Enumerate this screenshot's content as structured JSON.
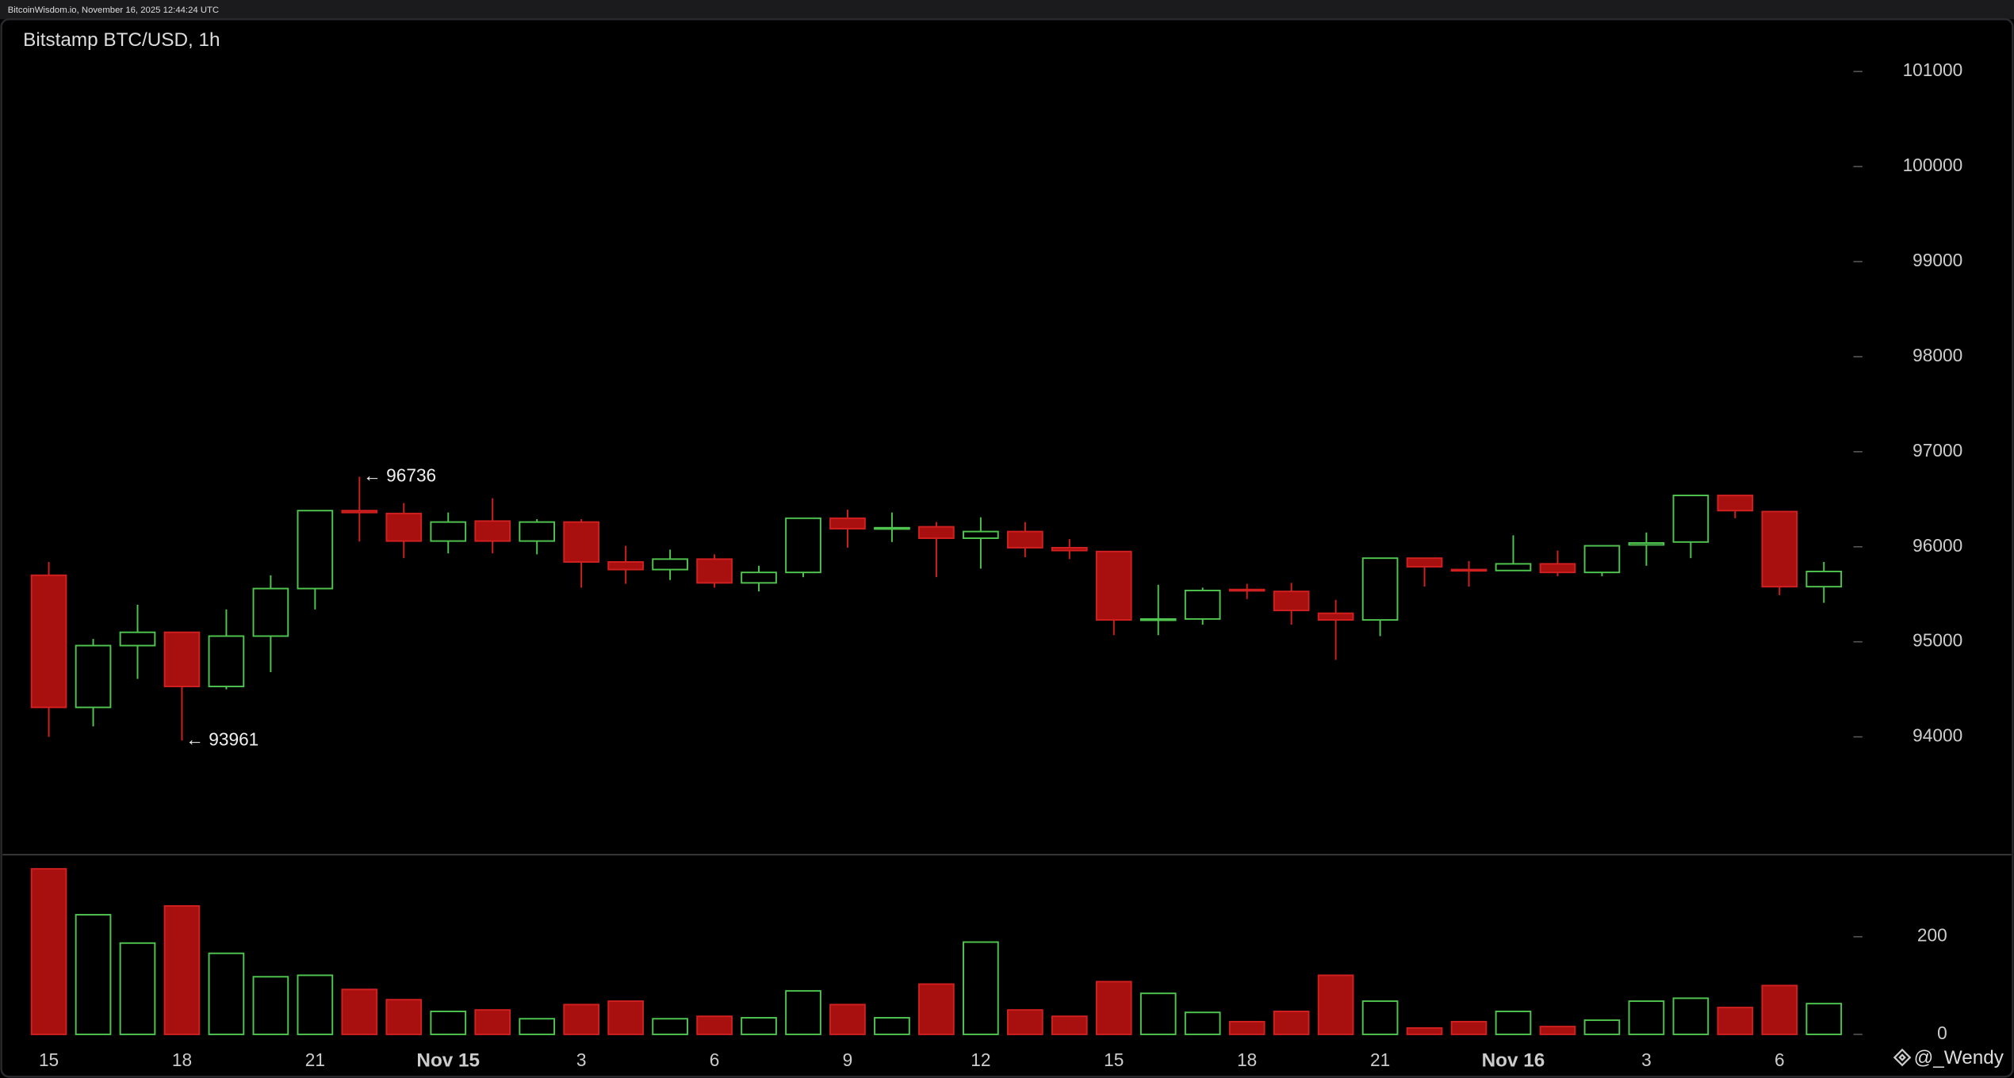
{
  "chart_data": {
    "type": "candlestick",
    "header": "BitcoinWisdom.io, November 16, 2025 12:44:24 UTC",
    "title": "Bitstamp BTC/USD, 1h",
    "categories": [
      "15",
      null,
      null,
      "18",
      null,
      null,
      "21",
      null,
      null,
      "Nov 15",
      null,
      null,
      "3",
      null,
      null,
      "6",
      null,
      null,
      "9",
      null,
      null,
      "12",
      null,
      null,
      "15",
      null,
      null,
      "18",
      null,
      null,
      "21",
      null,
      null,
      "Nov 16",
      null,
      null,
      "3",
      null,
      null,
      "6",
      null
    ],
    "open": [
      95700,
      94310,
      94960,
      95100,
      94530,
      95060,
      95560,
      96380,
      96350,
      96060,
      96270,
      96060,
      96260,
      95840,
      95760,
      95870,
      95620,
      95730,
      96300,
      96190,
      96210,
      96090,
      96160,
      95990,
      95950,
      95230,
      95240,
      95550,
      95530,
      95300,
      95230,
      95880,
      95760,
      95750,
      95820,
      95730,
      96020,
      96050,
      96540,
      96370,
      95580
    ],
    "high": [
      95840,
      95030,
      95390,
      95100,
      95340,
      95700,
      96380,
      96736,
      96460,
      96360,
      96510,
      96290,
      96290,
      96010,
      95970,
      95920,
      95800,
      96300,
      96390,
      96360,
      96260,
      96310,
      96260,
      96080,
      95950,
      95600,
      95570,
      95610,
      95620,
      95440,
      95880,
      95880,
      95850,
      96120,
      95960,
      96010,
      96150,
      96540,
      96540,
      96370,
      95840
    ],
    "low": [
      94000,
      94110,
      94610,
      93961,
      94500,
      94680,
      95340,
      96055,
      95880,
      95930,
      95930,
      95920,
      95570,
      95610,
      95650,
      95570,
      95530,
      95680,
      95990,
      96050,
      95680,
      95770,
      95890,
      95870,
      95070,
      95070,
      95180,
      95450,
      95180,
      94810,
      95060,
      95580,
      95580,
      95750,
      95690,
      95690,
      95800,
      95880,
      96300,
      95490,
      95410
    ],
    "close": [
      94310,
      94960,
      95100,
      94530,
      95060,
      95560,
      96380,
      96360,
      96060,
      96260,
      96060,
      96260,
      95840,
      95760,
      95870,
      95620,
      95730,
      96300,
      96190,
      96200,
      96090,
      96160,
      95990,
      95960,
      95230,
      95240,
      95540,
      95540,
      95330,
      95230,
      95880,
      95790,
      95750,
      95820,
      95730,
      96010,
      96040,
      96540,
      96380,
      95580,
      95740
    ],
    "volume": [
      339,
      245,
      187,
      263,
      166,
      118,
      121,
      92,
      71,
      47,
      50,
      32,
      61,
      68,
      32,
      37,
      34,
      89,
      61,
      34,
      103,
      189,
      50,
      37,
      108,
      84,
      45,
      26,
      47,
      121,
      68,
      13,
      26,
      47,
      16,
      29,
      68,
      74,
      55,
      100,
      63
    ],
    "up_color": "#4fc44f",
    "down_color": "#a80f0f",
    "ylim": [
      92760,
      101550
    ],
    "yticks": [
      94000,
      95000,
      96000,
      97000,
      98000,
      99000,
      100000,
      101000
    ],
    "volume_ylim": [
      0,
      368
    ],
    "volume_yticks": [
      0,
      200
    ],
    "annotations": [
      {
        "text": "← 96736",
        "value": 96736
      },
      {
        "text": "← 93961",
        "value": 93961
      }
    ],
    "watermark": "@_Wendy"
  }
}
